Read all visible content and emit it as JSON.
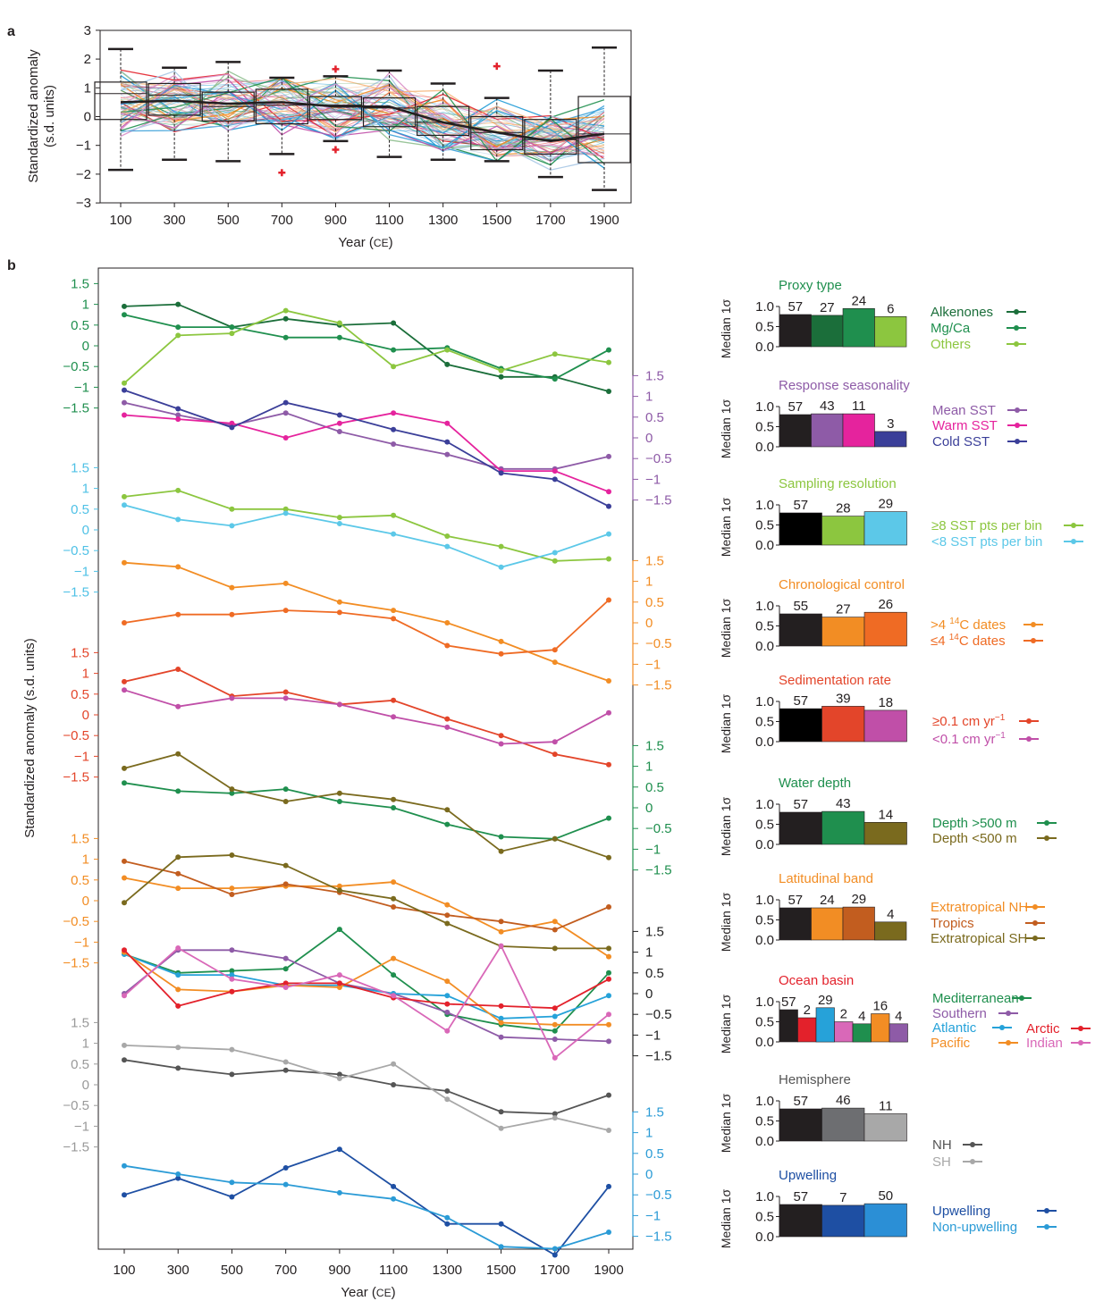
{
  "figure": {
    "panel_a_label": "a",
    "panel_b_label": "b",
    "years": [
      100,
      300,
      500,
      700,
      900,
      1100,
      1300,
      1500,
      1700,
      1900
    ],
    "xlabel_prefix": "Year (",
    "xlabel_unit": "CE",
    "xlabel_suffix": ")"
  },
  "chart_data": [
    {
      "type": "box",
      "panel": "a",
      "ylabel_line1": "Standardized anomaly",
      "ylabel_line2": "(s.d. units)",
      "ylim": [
        -3,
        3
      ],
      "yticks": [
        "3",
        "2",
        "1",
        "0",
        "−1",
        "−2",
        "−3"
      ],
      "boxes": [
        {
          "x": 100,
          "min": -1.85,
          "q1": -0.1,
          "median": 0.8,
          "q3": 1.2,
          "max": 2.35,
          "mean_line": 0.5
        },
        {
          "x": 300,
          "min": -1.5,
          "q1": 0.05,
          "median": 0.75,
          "q3": 1.15,
          "max": 1.7,
          "mean_line": 0.55
        },
        {
          "x": 500,
          "min": -1.55,
          "q1": -0.15,
          "median": 0.35,
          "q3": 0.85,
          "max": 1.9,
          "mean_line": 0.45
        },
        {
          "x": 700,
          "min": -1.3,
          "q1": -0.25,
          "median": 0.4,
          "q3": 0.95,
          "max": 1.35,
          "mean_line": 0.5
        },
        {
          "x": 900,
          "min": -0.85,
          "q1": -0.1,
          "median": 0.4,
          "q3": 0.7,
          "max": 1.4,
          "mean_line": 0.35
        },
        {
          "x": 1100,
          "min": -1.4,
          "q1": -0.35,
          "median": 0.3,
          "q3": 0.65,
          "max": 1.6,
          "mean_line": 0.35
        },
        {
          "x": 1300,
          "min": -1.5,
          "q1": -0.65,
          "median": -0.2,
          "q3": 0.35,
          "max": 1.15,
          "mean_line": -0.2
        },
        {
          "x": 1500,
          "min": -1.55,
          "q1": -1.15,
          "median": -0.55,
          "q3": 0.0,
          "max": 0.65,
          "mean_line": -0.55
        },
        {
          "x": 1700,
          "min": -2.1,
          "q1": -1.3,
          "median": -0.8,
          "q3": -0.1,
          "max": 1.6,
          "mean_line": -0.85
        },
        {
          "x": 1900,
          "min": -2.55,
          "q1": -1.6,
          "median": -0.6,
          "q3": 0.7,
          "max": 2.4,
          "mean_line": -0.6
        }
      ],
      "outliers": [
        {
          "x": 700,
          "y": -1.95
        },
        {
          "x": 900,
          "y": 1.65
        },
        {
          "x": 900,
          "y": -1.15
        },
        {
          "x": 1500,
          "y": 1.75
        }
      ],
      "outlier_color": "#e3212b",
      "spaghetti_colors": [
        "#1e9ad6",
        "#f28d24",
        "#e3212b",
        "#1f8f4e",
        "#c04fa8",
        "#3aa0d8",
        "#a9c8e6",
        "#f5b880",
        "#8fbf8f",
        "#d98fc8"
      ]
    },
    {
      "type": "line",
      "panel": "b",
      "ylabel": "Standardized anomaly (s.d. units)",
      "tick_labels": [
        "1.5",
        "1",
        "0.5",
        "0",
        "−0.5",
        "−1",
        "−1.5"
      ],
      "groups": [
        {
          "name": "Proxy type",
          "axis_side": "left",
          "axis_color": "#1f8f4e",
          "series": [
            {
              "name": "Alkenones",
              "color": "#1b6e3a",
              "values": [
                0.95,
                1.0,
                0.45,
                0.65,
                0.5,
                0.55,
                -0.45,
                -0.75,
                -0.75,
                -1.1
              ]
            },
            {
              "name": "Mg/Ca",
              "color": "#1f8f4e",
              "values": [
                0.75,
                0.45,
                0.45,
                0.2,
                0.2,
                -0.1,
                -0.05,
                -0.55,
                -0.8,
                -0.1
              ]
            },
            {
              "name": "Others",
              "color": "#8cc63f",
              "values": [
                -0.9,
                0.25,
                0.3,
                0.85,
                0.55,
                -0.5,
                -0.1,
                -0.6,
                -0.2,
                -0.4
              ]
            }
          ]
        },
        {
          "name": "Response seasonality",
          "axis_side": "right",
          "axis_color": "#8e5ba7",
          "series": [
            {
              "name": "Mean SST",
              "color": "#8e5ba7",
              "values": [
                0.85,
                0.55,
                0.3,
                0.6,
                0.15,
                -0.15,
                -0.4,
                -0.75,
                -0.75,
                -0.45
              ]
            },
            {
              "name": "Warm SST",
              "color": "#e5239d",
              "values": [
                0.55,
                0.45,
                0.35,
                0.0,
                0.35,
                0.6,
                0.35,
                -0.8,
                -0.8,
                -1.3
              ]
            },
            {
              "name": "Cold SST",
              "color": "#3b3f99",
              "values": [
                1.15,
                0.7,
                0.25,
                0.85,
                0.55,
                0.2,
                -0.1,
                -0.85,
                -1.0,
                -1.65
              ]
            }
          ]
        },
        {
          "name": "Sampling resolution",
          "axis_side": "left",
          "axis_color": "#4fc1e6",
          "series": [
            {
              "name": "≥8 SST pts per bin",
              "color": "#8cc63f",
              "values": [
                0.8,
                0.95,
                0.5,
                0.5,
                0.3,
                0.35,
                -0.15,
                -0.4,
                -0.75,
                -0.7
              ]
            },
            {
              "name": "<8 SST pts per bin",
              "color": "#5cc8e8",
              "values": [
                0.6,
                0.25,
                0.1,
                0.4,
                0.15,
                -0.1,
                -0.4,
                -0.9,
                -0.55,
                -0.1
              ]
            }
          ]
        },
        {
          "name": "Chronological control",
          "axis_side": "right",
          "axis_color": "#f28d24",
          "series": [
            {
              "name": ">4 14C dates",
              "color": "#f28d24",
              "values": [
                1.45,
                1.35,
                0.85,
                0.95,
                0.5,
                0.3,
                0.0,
                -0.45,
                -0.95,
                -1.4
              ]
            },
            {
              "name": "≤4 14C dates",
              "color": "#ef6b24",
              "values": [
                0.0,
                0.2,
                0.2,
                0.3,
                0.25,
                0.1,
                -0.55,
                -0.75,
                -0.65,
                0.55
              ]
            }
          ]
        },
        {
          "name": "Sedimentation rate",
          "axis_side": "left",
          "axis_color": "#e3452a",
          "series": [
            {
              "name": "≥0.1 cm yr-1",
              "color": "#e3452a",
              "values": [
                0.8,
                1.1,
                0.45,
                0.55,
                0.25,
                0.35,
                -0.1,
                -0.5,
                -0.95,
                -1.2
              ]
            },
            {
              "name": "<0.1 cm yr-1",
              "color": "#c04fa8",
              "values": [
                0.6,
                0.2,
                0.4,
                0.4,
                0.25,
                -0.05,
                -0.3,
                -0.7,
                -0.65,
                0.05
              ]
            }
          ]
        },
        {
          "name": "Water depth",
          "axis_side": "right",
          "axis_color": "#1f8f4e",
          "series": [
            {
              "name": "Depth >500 m",
              "color": "#1f8f4e",
              "values": [
                0.6,
                0.4,
                0.35,
                0.45,
                0.15,
                0.0,
                -0.4,
                -0.7,
                -0.75,
                -0.25
              ]
            },
            {
              "name": "Depth <500 m",
              "color": "#7a6a1e",
              "values": [
                0.95,
                1.3,
                0.45,
                0.15,
                0.35,
                0.2,
                -0.05,
                -1.05,
                -0.75,
                -1.2
              ]
            }
          ]
        },
        {
          "name": "Latitudinal band",
          "axis_side": "left",
          "axis_color": "#f28d24",
          "series": [
            {
              "name": "Extratropical NH",
              "color": "#f28d24",
              "values": [
                0.55,
                0.3,
                0.3,
                0.35,
                0.35,
                0.45,
                -0.1,
                -0.75,
                -0.5,
                -1.35
              ]
            },
            {
              "name": "Tropics",
              "color": "#c25d1f",
              "values": [
                0.95,
                0.65,
                0.15,
                0.4,
                0.2,
                -0.15,
                -0.35,
                -0.5,
                -0.7,
                -0.15
              ]
            },
            {
              "name": "Extratropical SH",
              "color": "#7a6a1e",
              "values": [
                -0.05,
                1.05,
                1.1,
                0.85,
                0.25,
                0.05,
                -0.55,
                -1.1,
                -1.15,
                -1.15
              ]
            }
          ]
        },
        {
          "name": "Ocean basin",
          "axis_side": "right",
          "axis_color": "#222222",
          "series": [
            {
              "name": "Mediterranean",
              "color": "#1f8f4e",
              "values": [
                0.95,
                0.5,
                0.55,
                0.6,
                1.55,
                0.45,
                -0.5,
                -0.75,
                -0.9,
                0.5
              ]
            },
            {
              "name": "Southern",
              "color": "#8e5ba7",
              "values": [
                0.0,
                1.05,
                1.05,
                0.85,
                0.25,
                0.0,
                -0.45,
                -1.05,
                -1.1,
                -1.15
              ]
            },
            {
              "name": "Atlantic",
              "color": "#26a2d9",
              "values": [
                0.95,
                0.45,
                0.45,
                0.2,
                0.2,
                0.0,
                -0.05,
                -0.6,
                -0.55,
                -0.05
              ]
            },
            {
              "name": "Pacific",
              "color": "#f28d24",
              "values": [
                1.0,
                0.1,
                0.05,
                0.2,
                0.15,
                0.85,
                0.3,
                -0.7,
                -0.75,
                -0.75
              ]
            },
            {
              "name": "Arctic",
              "color": "#e3212b",
              "values": [
                1.05,
                -0.3,
                0.05,
                0.25,
                0.25,
                -0.1,
                -0.25,
                -0.3,
                -0.35,
                0.35
              ]
            },
            {
              "name": "Indian",
              "color": "#d968b8",
              "values": [
                -0.05,
                1.1,
                0.35,
                0.15,
                0.45,
                -0.05,
                -0.9,
                1.15,
                -1.55,
                -0.5
              ]
            }
          ]
        },
        {
          "name": "Hemisphere",
          "axis_side": "left",
          "axis_color": "#999999",
          "series": [
            {
              "name": "NH",
              "color": "#555555",
              "values": [
                0.6,
                0.4,
                0.25,
                0.35,
                0.25,
                0.0,
                -0.15,
                -0.65,
                -0.7,
                -0.25
              ]
            },
            {
              "name": "SH",
              "color": "#a8a8a8",
              "values": [
                0.95,
                0.9,
                0.85,
                0.55,
                0.15,
                0.5,
                -0.35,
                -1.05,
                -0.8,
                -1.1
              ]
            }
          ]
        },
        {
          "name": "Upwelling",
          "axis_side": "right",
          "axis_color": "#2b9bd6",
          "series": [
            {
              "name": "Upwelling",
              "color": "#1e4fa3",
              "values": [
                -0.5,
                -0.1,
                -0.55,
                0.15,
                0.6,
                -0.3,
                -1.2,
                -1.2,
                -1.95,
                -0.3
              ]
            },
            {
              "name": "Non-upwelling",
              "color": "#2b9bd6",
              "values": [
                0.2,
                0.0,
                -0.2,
                -0.25,
                -0.45,
                -0.6,
                -1.05,
                -1.75,
                -1.8,
                -1.4
              ]
            }
          ]
        }
      ]
    },
    {
      "type": "bar",
      "panel": "b-inset",
      "ylabel": "Median 1σ",
      "yticks": [
        "1.0",
        "0.5",
        "0.0"
      ],
      "ylim": [
        0,
        1
      ],
      "groups": [
        {
          "title": "Proxy type",
          "title_color": "#1f8f4e",
          "counts": [
            "57",
            "27",
            "24",
            "6"
          ],
          "values": [
            0.8,
            0.78,
            0.95,
            0.75
          ],
          "colors": [
            "#231f20",
            "#1b6e3a",
            "#1f8f4e",
            "#8cc63f"
          ]
        },
        {
          "title": "Response seasonality",
          "title_color": "#8e5ba7",
          "counts": [
            "57",
            "43",
            "11",
            "3"
          ],
          "values": [
            0.8,
            0.82,
            0.82,
            0.38
          ],
          "colors": [
            "#231f20",
            "#8e5ba7",
            "#e5239d",
            "#3b3f99"
          ]
        },
        {
          "title": "Sampling resolution",
          "title_color": "#8cc63f",
          "counts": [
            "57",
            "28",
            "29"
          ],
          "values": [
            0.8,
            0.72,
            0.83
          ],
          "colors": [
            "#000000",
            "#8cc63f",
            "#5cc8e8"
          ]
        },
        {
          "title": "Chronological control",
          "title_color": "#f28d24",
          "counts": [
            "55",
            "27",
            "26"
          ],
          "values": [
            0.8,
            0.72,
            0.84
          ],
          "colors": [
            "#231f20",
            "#f28d24",
            "#ef6b24"
          ]
        },
        {
          "title": "Sedimentation rate",
          "title_color": "#e3452a",
          "counts": [
            "57",
            "39",
            "18"
          ],
          "values": [
            0.82,
            0.88,
            0.78
          ],
          "colors": [
            "#000000",
            "#e3452a",
            "#c04fa8"
          ]
        },
        {
          "title": "Water depth",
          "title_color": "#1f8f4e",
          "counts": [
            "57",
            "43",
            "14"
          ],
          "values": [
            0.8,
            0.82,
            0.55
          ],
          "colors": [
            "#231f20",
            "#1f8f4e",
            "#7a6a1e"
          ]
        },
        {
          "title": "Latitudinal band",
          "title_color": "#f28d24",
          "counts": [
            "57",
            "24",
            "29",
            "4"
          ],
          "values": [
            0.8,
            0.8,
            0.82,
            0.45
          ],
          "colors": [
            "#231f20",
            "#f28d24",
            "#c25d1f",
            "#7a6a1e"
          ]
        },
        {
          "title": "Ocean basin",
          "title_color": "#e3212b",
          "counts": [
            "57",
            "2",
            "29",
            "2",
            "4",
            "16",
            "4"
          ],
          "values": [
            0.8,
            0.6,
            0.85,
            0.5,
            0.45,
            0.7,
            0.45
          ],
          "colors": [
            "#231f20",
            "#e3212b",
            "#26a2d9",
            "#d968b8",
            "#1f8f4e",
            "#f28d24",
            "#8e5ba7"
          ]
        },
        {
          "title": "Hemisphere",
          "title_color": "#555555",
          "counts": [
            "57",
            "46",
            "11"
          ],
          "values": [
            0.8,
            0.82,
            0.68
          ],
          "colors": [
            "#231f20",
            "#6d6e71",
            "#a8a8a8"
          ]
        },
        {
          "title": "Upwelling",
          "title_color": "#1e4fa3",
          "counts": [
            "57",
            "7",
            "50"
          ],
          "values": [
            0.8,
            0.78,
            0.82
          ],
          "colors": [
            "#231f20",
            "#1e4fa3",
            "#2b8fd6"
          ]
        }
      ]
    }
  ]
}
